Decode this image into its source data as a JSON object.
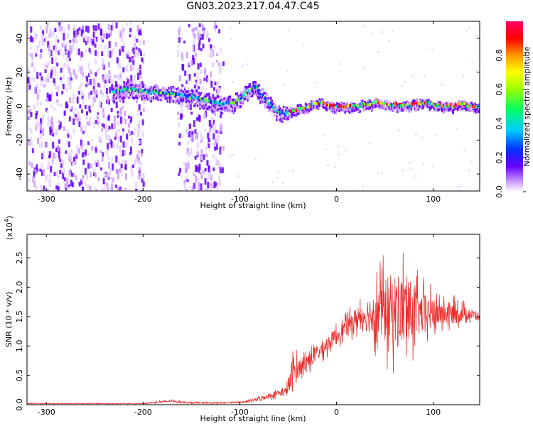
{
  "title": "GN03.2023.217.04.47.C45",
  "chart_data": [
    {
      "type": "heatmap",
      "xlabel": "Height of straight line (km)",
      "ylabel": "Frequency (Hz)",
      "xlim": [
        -320,
        148
      ],
      "ylim": [
        -50,
        50
      ],
      "xticks": [
        -300,
        -200,
        -100,
        0,
        100
      ],
      "yticks": [
        -40,
        -20,
        0,
        20,
        40
      ],
      "colorbar": {
        "label": "Normalized spectral amplitude",
        "range": [
          0,
          1
        ],
        "ticks": [
          0.0,
          0.2,
          0.4,
          0.6,
          0.8
        ],
        "colors": [
          "#ffffff",
          "#cc99ff",
          "#6600ff",
          "#0033ff",
          "#00ccff",
          "#00ff66",
          "#99ff00",
          "#ffff00",
          "#ff9900",
          "#ff0000",
          "#ff0066"
        ]
      },
      "ridge": {
        "x": [
          -230,
          -215,
          -200,
          -185,
          -170,
          -155,
          -140,
          -125,
          -110,
          -100,
          -92,
          -85,
          -78,
          -70,
          -62,
          -55,
          -50,
          -45,
          -40,
          -30,
          -20,
          -15,
          -10,
          -5,
          0,
          10,
          20,
          30,
          40,
          50,
          60,
          70,
          80,
          90,
          100,
          110,
          120,
          130,
          140,
          148
        ],
        "y": [
          9,
          10,
          9,
          8,
          7,
          6,
          4,
          2,
          1,
          5,
          9,
          12,
          6,
          2,
          -3,
          -4,
          -4,
          -3,
          -1,
          0,
          2,
          3,
          1,
          0,
          0,
          0,
          0,
          1,
          2,
          1,
          1,
          0,
          1,
          2,
          1,
          0,
          0,
          1,
          0,
          0
        ]
      }
    },
    {
      "type": "line",
      "xlabel": "Height of straight line (km)",
      "ylabel": "SNR (10 * v/v)",
      "yscale_label": "(x10",
      "yscale_exp": "4",
      "yscale_close": ")",
      "xlim": [
        -320,
        148
      ],
      "ylim": [
        0,
        2.9
      ],
      "xticks": [
        -300,
        -200,
        -100,
        0,
        100
      ],
      "yticks": [
        0.0,
        0.5,
        1.0,
        1.5,
        2.0,
        2.5
      ],
      "color": "#e8302e",
      "envelope": {
        "x": [
          -320,
          -250,
          -200,
          -180,
          -170,
          -150,
          -120,
          -100,
          -90,
          -80,
          -70,
          -60,
          -52,
          -48,
          -45,
          -40,
          -35,
          -25,
          -15,
          -5,
          5,
          15,
          25,
          35,
          45,
          55,
          65,
          75,
          85,
          95,
          105,
          115,
          125,
          135,
          148
        ],
        "mean": [
          0.02,
          0.02,
          0.02,
          0.05,
          0.06,
          0.03,
          0.03,
          0.04,
          0.06,
          0.1,
          0.15,
          0.2,
          0.22,
          0.4,
          0.55,
          0.6,
          0.7,
          0.8,
          0.95,
          1.1,
          1.25,
          1.4,
          1.5,
          1.55,
          1.6,
          1.6,
          1.6,
          1.6,
          1.55,
          1.55,
          1.55,
          1.55,
          1.55,
          1.55,
          1.5
        ],
        "amp": [
          0.01,
          0.01,
          0.01,
          0.03,
          0.03,
          0.02,
          0.02,
          0.02,
          0.04,
          0.06,
          0.08,
          0.1,
          0.15,
          0.35,
          0.6,
          0.3,
          0.25,
          0.25,
          0.25,
          0.25,
          0.25,
          0.3,
          0.4,
          0.6,
          0.9,
          1.1,
          1.2,
          1.0,
          0.7,
          0.55,
          0.4,
          0.35,
          0.3,
          0.2,
          0.1
        ]
      }
    }
  ]
}
